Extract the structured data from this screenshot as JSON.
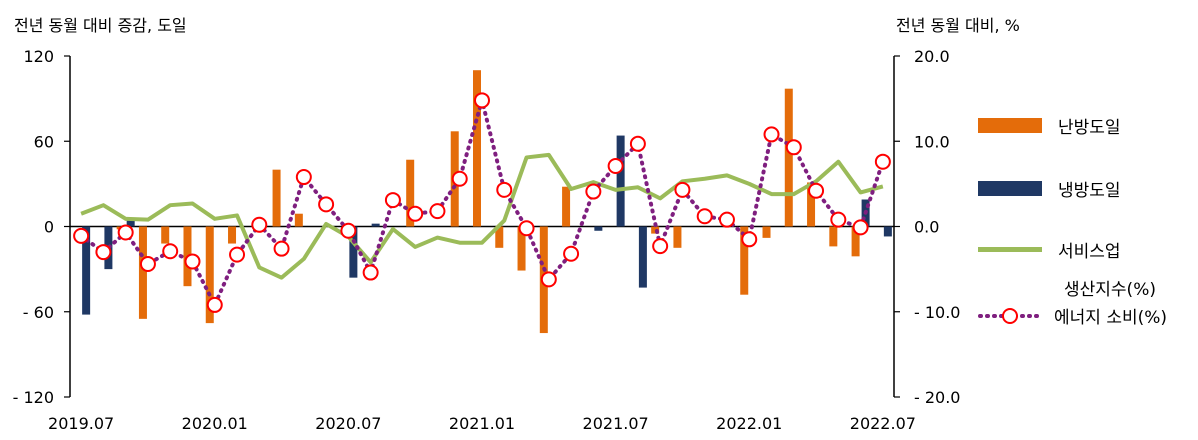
{
  "left_axis_title": "전년 동월 대비 증감, 도일",
  "right_axis_title": "전년 동월 대비, %",
  "colors": {
    "heating": "#e46c0a",
    "cooling": "#1f3864",
    "services": "#9bbb59",
    "energy": "#7f1f7f",
    "energy_marker": "#ff0000"
  },
  "legend": {
    "heating": "난방도일",
    "cooling": "냉방도일",
    "services_line1": "서비스업",
    "services_line2": "생산지수(%)",
    "energy": "에너지 소비(%)"
  },
  "chart_data": {
    "type": "bar",
    "x": [
      "2019.07",
      "2019.08",
      "2019.09",
      "2019.10",
      "2019.11",
      "2019.12",
      "2020.01",
      "2020.02",
      "2020.03",
      "2020.04",
      "2020.05",
      "2020.06",
      "2020.07",
      "2020.08",
      "2020.09",
      "2020.10",
      "2020.11",
      "2020.12",
      "2021.01",
      "2021.02",
      "2021.03",
      "2021.04",
      "2021.05",
      "2021.06",
      "2021.07",
      "2021.08",
      "2021.09",
      "2021.10",
      "2021.11",
      "2021.12",
      "2022.01",
      "2022.02",
      "2022.03",
      "2022.04",
      "2022.05",
      "2022.06",
      "2022.07"
    ],
    "x_tick_labels": [
      "2019.07",
      "2020.01",
      "2020.07",
      "2021.01",
      "2021.07",
      "2022.01",
      "2022.07"
    ],
    "left_axis": {
      "ylim": [
        -120,
        120
      ],
      "ticks": [
        120,
        60,
        0,
        -60,
        -120
      ],
      "tick_labels": [
        "120",
        "60",
        "0",
        "- 60",
        "- 120"
      ]
    },
    "right_axis": {
      "ylim": [
        -20,
        20
      ],
      "ticks": [
        20,
        10,
        0,
        -10,
        -20
      ],
      "tick_labels": [
        "20.0",
        "10.0",
        "0.0",
        "- 10.0",
        "- 20.0"
      ]
    },
    "series": [
      {
        "name": "난방도일",
        "type": "bar",
        "axis": "left",
        "values": [
          0,
          0,
          -2,
          -65,
          -12,
          -42,
          -68,
          -12,
          0,
          40,
          9,
          0,
          0,
          0,
          0,
          47,
          0,
          67,
          110,
          -15,
          -31,
          -75,
          28,
          0,
          0,
          0,
          -5,
          -15,
          0,
          0,
          -48,
          -8,
          97,
          31,
          -14,
          -21,
          0
        ]
      },
      {
        "name": "냉방도일",
        "type": "bar",
        "axis": "left",
        "values": [
          -62,
          -30,
          5,
          0,
          0,
          0,
          0,
          0,
          0,
          0,
          0,
          0,
          -36,
          2,
          0,
          0,
          0,
          0,
          0,
          0,
          0,
          0,
          0,
          -3,
          64,
          -43,
          0,
          0,
          0,
          0,
          0,
          0,
          0,
          0,
          0,
          19,
          -7
        ]
      },
      {
        "name": "서비스업 생산지수(%)",
        "type": "line",
        "axis": "right",
        "values": [
          1.5,
          2.5,
          0.9,
          0.8,
          2.5,
          2.7,
          0.9,
          1.3,
          -4.8,
          -6.0,
          -3.8,
          0.3,
          -1.2,
          -4.2,
          -0.3,
          -2.4,
          -1.3,
          -1.9,
          -1.9,
          0.7,
          8.1,
          8.4,
          4.4,
          5.2,
          4.3,
          4.6,
          3.3,
          5.3,
          5.6,
          6.0,
          5.0,
          3.8,
          3.8,
          5.3,
          7.6,
          4.0,
          4.7
        ]
      },
      {
        "name": "에너지 소비(%)",
        "type": "line",
        "axis": "right",
        "values": [
          -1.1,
          -3.0,
          -0.7,
          -4.4,
          -2.9,
          -4.1,
          -9.2,
          -3.3,
          0.2,
          -2.6,
          5.8,
          2.6,
          -0.5,
          -5.4,
          3.1,
          1.5,
          1.8,
          5.6,
          14.8,
          4.3,
          -0.2,
          -6.2,
          -3.2,
          4.1,
          7.1,
          9.7,
          -2.3,
          4.3,
          1.2,
          0.8,
          -1.5,
          10.8,
          9.3,
          4.2,
          0.8,
          -0.1,
          7.6
        ]
      }
    ]
  }
}
